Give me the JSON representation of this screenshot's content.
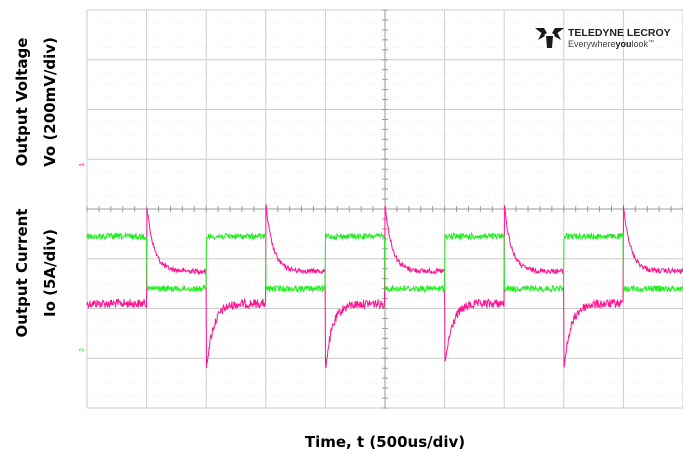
{
  "chart_data": {
    "type": "line",
    "title": "",
    "xlabel": "Time, t (500us/div)",
    "ylabel_top": [
      "Output Voltage",
      "Vo (200mV/div)"
    ],
    "ylabel_bottom": [
      "Output Current",
      "Io (5A/div)"
    ],
    "grid": true,
    "divisions": {
      "x": 10,
      "y": 8
    },
    "xlim": [
      0,
      5000
    ],
    "x_unit": "us",
    "step_times_us": [
      0,
      500,
      1000,
      1500,
      2000,
      2500,
      3000,
      3500,
      4000,
      4500,
      5000
    ],
    "series": [
      {
        "name": "",
        "channel_marker": "1",
        "color": "#ff1493",
        "levels_div": {
          "high_load": 2.1,
          "low_load": 2.75
        },
        "transient": {
          "overshoot_div": 2.45,
          "undershoot_div": 2.4,
          "tau_us": 60
        }
      },
      {
        "name": "",
        "channel_marker": "2",
        "color": "#22ee22",
        "levels_div": {
          "high_load": 3.45,
          "low_load": 2.4
        }
      }
    ]
  },
  "brand": {
    "name": "TELEDYNE LECROY",
    "tagline_a": "Everywhere",
    "tagline_b": "you",
    "tagline_c": "look",
    "tm": "™"
  },
  "colors": {
    "grid": "#cccccc",
    "axis": "#9a9a9a",
    "vo": "#ff1493",
    "io": "#22ee22"
  }
}
